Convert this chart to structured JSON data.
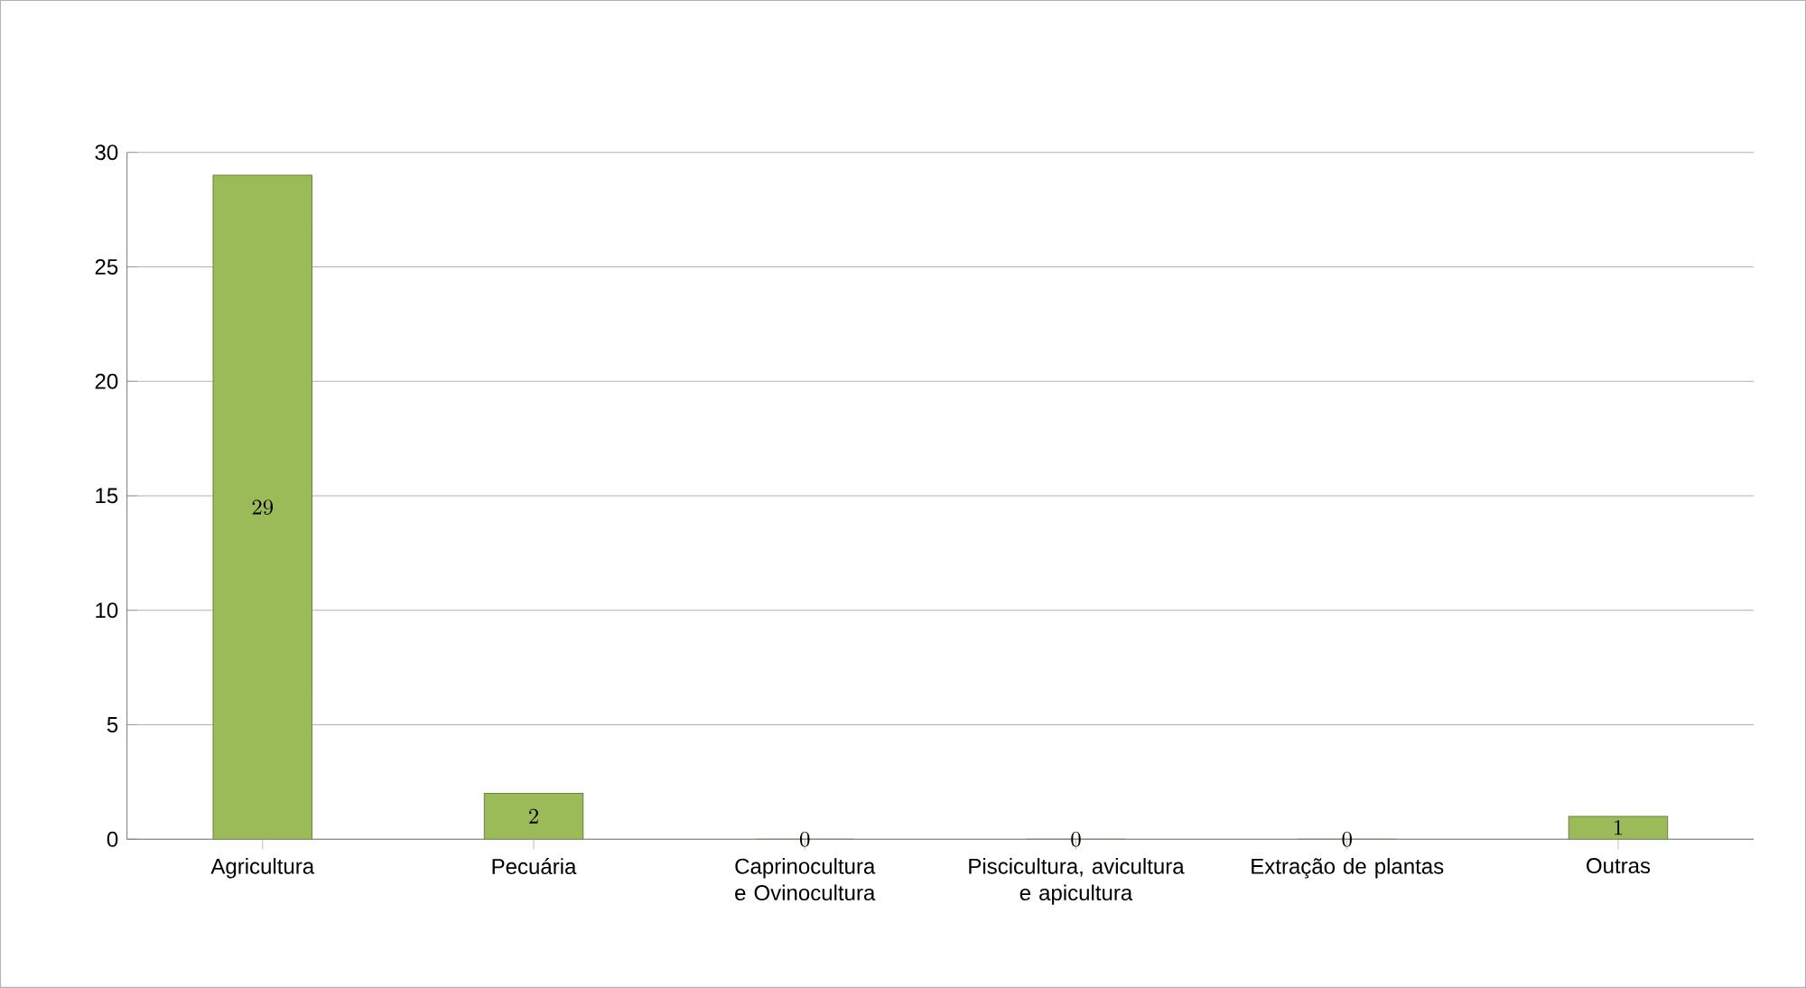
{
  "chart_data": {
    "type": "bar",
    "categories": [
      "Agricultura",
      "Pecuária",
      "Caprinocultura e Ovinocultura",
      "Piscicultura, avicultura e apicultura",
      "Extração de plantas",
      "Outras"
    ],
    "values": [
      29,
      2,
      0,
      0,
      0,
      1
    ],
    "color": "#9bbb59",
    "ylim": [
      0,
      30
    ],
    "yticks": [
      0,
      5,
      10,
      15,
      20,
      25,
      30
    ],
    "grid": "y",
    "data_labels": true
  }
}
